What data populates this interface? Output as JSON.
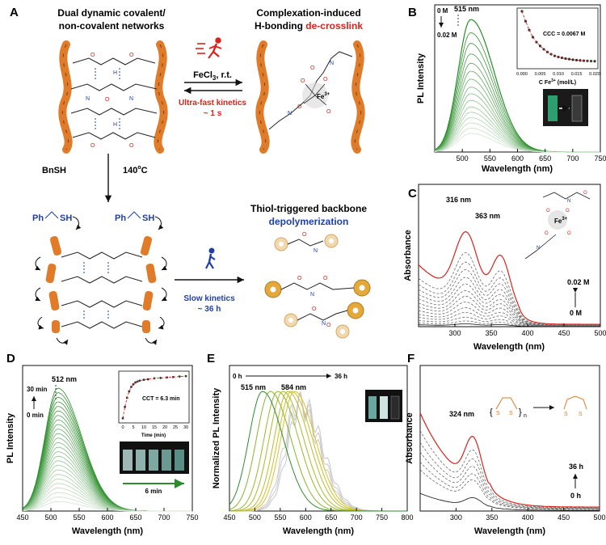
{
  "panelA": {
    "letter": "A",
    "title_left_1": "Dual dynamic covalent/",
    "title_left_2": "non-covalent networks",
    "title_right_1": "Complexation-induced",
    "title_right_2a": "H-bonding ",
    "title_right_2b": "de-crosslink",
    "reagent_top": "FeCl",
    "reagent_top_sub": "3",
    "reagent_top_tail": ", r.t.",
    "kinetics_fast_1": "Ultra-fast kinetics",
    "kinetics_fast_2": "~ 1 s",
    "fe_label": "Fe",
    "fe_sup": "3+",
    "reagent_down_1": "BnSH",
    "reagent_down_2": "140",
    "reagent_down_sup": "o",
    "reagent_down_3": "C",
    "ph_label": "Ph",
    "sh_label": "SH",
    "title_bottom_1": "Thiol-triggered backbone",
    "title_bottom_2": "depolymerization",
    "kinetics_slow_1": "Slow kinetics",
    "kinetics_slow_2": "~ 36 h"
  },
  "colors": {
    "accent_red": "#d9231c",
    "accent_blue": "#1f3fa6",
    "green": "#2e8b2e",
    "orange": "#e07b2a",
    "dashed": "#6b6b6b"
  },
  "chart_data": [
    {
      "panel": "B",
      "type": "line",
      "xlabel": "Wavelength (nm)",
      "ylabel": "PL Intensity",
      "xlim": [
        450,
        750
      ],
      "xticks": [
        500,
        550,
        600,
        650,
        700,
        750
      ],
      "peak_label": "515 nm",
      "peak_x": 515,
      "series_count": 16,
      "peak_values": [
        1.0,
        0.9,
        0.82,
        0.74,
        0.67,
        0.61,
        0.55,
        0.49,
        0.44,
        0.39,
        0.34,
        0.3,
        0.26,
        0.22,
        0.18,
        0.14
      ],
      "arrow_top": "0 M",
      "arrow_bottom": "0.02 M",
      "inset": {
        "type": "scatter",
        "xlabel": "C Fe3+ (mol/L)",
        "xlabel_main": "C Fe",
        "xlabel_sup": "3+",
        "xlabel_tail": " (mol/L)",
        "xticks": [
          "0.000",
          "0.005",
          "0.010",
          "0.015",
          "0.020"
        ],
        "annotation": "CCC = 0.0067 M",
        "x": [
          0.0,
          0.001,
          0.002,
          0.003,
          0.004,
          0.005,
          0.006,
          0.007,
          0.008,
          0.009,
          0.01,
          0.011,
          0.012,
          0.013,
          0.014,
          0.015,
          0.016,
          0.017,
          0.018,
          0.019,
          0.02
        ],
        "y": [
          1.0,
          0.82,
          0.66,
          0.53,
          0.44,
          0.37,
          0.31,
          0.26,
          0.22,
          0.19,
          0.17,
          0.155,
          0.14,
          0.13,
          0.12,
          0.113,
          0.107,
          0.102,
          0.098,
          0.095,
          0.092
        ]
      }
    },
    {
      "panel": "C",
      "type": "line",
      "xlabel": "Wavelength (nm)",
      "ylabel": "Absorbance",
      "xlim": [
        250,
        500
      ],
      "xticks": [
        300,
        350,
        400,
        450,
        500
      ],
      "peak_labels": [
        "316 nm",
        "363 nm"
      ],
      "peak_x": [
        316,
        363
      ],
      "series_count": 14,
      "scale": [
        1.0,
        0.78,
        0.68,
        0.6,
        0.52,
        0.45,
        0.38,
        0.32,
        0.26,
        0.2,
        0.15,
        0.1,
        0.06,
        0.03
      ],
      "arrow_top": "0.02 M",
      "arrow_bottom": "0 M",
      "fe_label": "Fe",
      "fe_sup": "3+"
    },
    {
      "panel": "D",
      "type": "line",
      "xlabel": "Wavelength (nm)",
      "ylabel": "PL Intensity",
      "xlim": [
        450,
        750
      ],
      "xticks": [
        450,
        500,
        550,
        600,
        650,
        700,
        750
      ],
      "peak_label": "512 nm",
      "peak_x": 512,
      "series_count": 26,
      "arrow_top": "30 min",
      "arrow_bottom": "0 min",
      "arrow_bar": "6 min",
      "inset": {
        "type": "scatter",
        "xlabel": "Time (min)",
        "xticks": [
          "0",
          "5",
          "10",
          "15",
          "20",
          "25",
          "30"
        ],
        "annotation": "CCT = 6.3 min",
        "x": [
          0,
          1,
          2,
          3,
          4,
          5,
          6,
          7,
          8,
          10,
          12,
          15,
          18,
          21,
          24,
          27,
          30
        ],
        "y": [
          0.05,
          0.3,
          0.5,
          0.64,
          0.74,
          0.8,
          0.84,
          0.86,
          0.88,
          0.9,
          0.91,
          0.93,
          0.94,
          0.95,
          0.96,
          0.97,
          0.98
        ]
      }
    },
    {
      "panel": "E",
      "type": "line",
      "xlabel": "Wavelength (nm)",
      "ylabel": "Normalized PL Intensity",
      "xlim": [
        450,
        800
      ],
      "xticks": [
        450,
        500,
        550,
        600,
        650,
        700,
        750,
        800
      ],
      "peak_labels": [
        "515 nm",
        "584 nm"
      ],
      "peak_x": [
        515,
        584
      ],
      "series_peaks": [
        515,
        530,
        545,
        555,
        565,
        572,
        578,
        584,
        588,
        592
      ],
      "arrow_left": "0 h",
      "arrow_right": "36 h"
    },
    {
      "panel": "F",
      "type": "line",
      "xlabel": "Wavelength (nm)",
      "ylabel": "Absorbance",
      "xlim": [
        250,
        500
      ],
      "xticks": [
        300,
        350,
        400,
        450,
        500
      ],
      "peak_label": "324 nm",
      "peak_x": 324,
      "series_count": 7,
      "scale": [
        1.0,
        0.82,
        0.7,
        0.6,
        0.5,
        0.42,
        0.18
      ],
      "arrow_top": "36 h",
      "arrow_bottom": "0 h",
      "scheme_n": "n"
    }
  ]
}
